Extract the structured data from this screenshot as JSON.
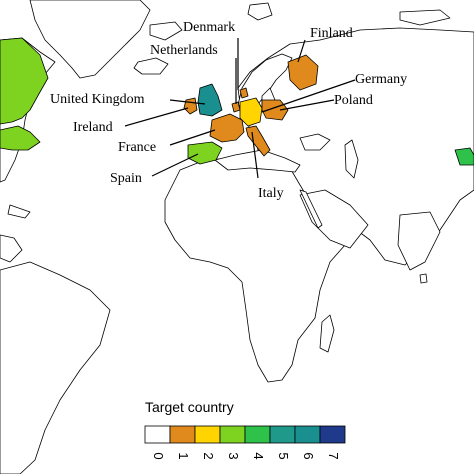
{
  "labels": {
    "denmark": "Denmark",
    "finland": "Finland",
    "netherlands": "Netherlands",
    "germany": "Germany",
    "united_kingdom": "United Kingdom",
    "poland": "Poland",
    "ireland": "Ireland",
    "france": "France",
    "spain": "Spain",
    "italy": "Italy"
  },
  "legend": {
    "title": "Target country",
    "values": [
      "0",
      "1",
      "2",
      "3",
      "4",
      "5",
      "6",
      "7"
    ],
    "colors": [
      "#ffffff",
      "#e08a1e",
      "#ffd400",
      "#7ed321",
      "#2ec24a",
      "#1f9a8a",
      "#1a8f8f",
      "#1f3a8a"
    ]
  },
  "country_values": {
    "Denmark": 1,
    "Finland": 1,
    "Netherlands": 1,
    "Germany": 2,
    "United Kingdom": 6,
    "Poland": 1,
    "Ireland": 1,
    "France": 1,
    "Spain": 3,
    "Italy": 1,
    "Canada": 3
  }
}
